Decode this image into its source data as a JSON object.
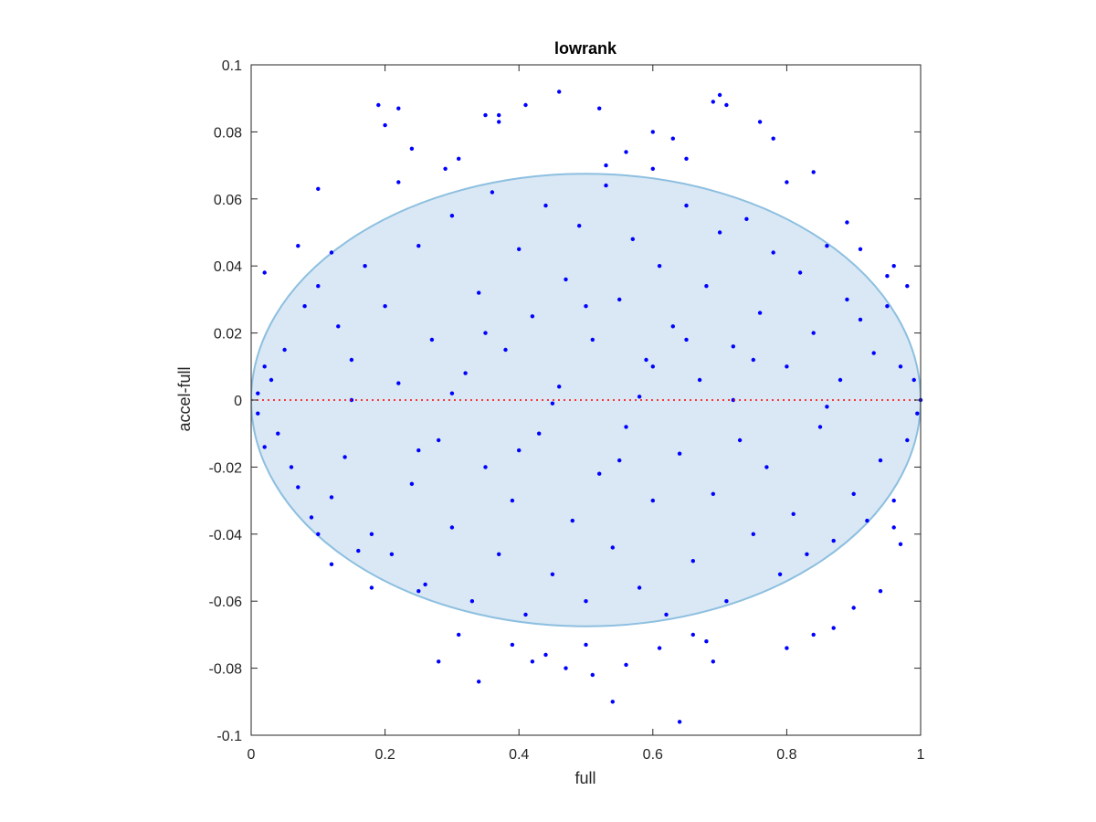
{
  "chart_data": {
    "type": "scatter",
    "title": "lowrank",
    "xlabel": "full",
    "ylabel": "accel-full",
    "xlim": [
      0,
      1
    ],
    "ylim": [
      -0.1,
      0.1
    ],
    "xticks": [
      "0",
      "0.2",
      "0.4",
      "0.6",
      "0.8",
      "1"
    ],
    "yticks": [
      "-0.1",
      "-0.08",
      "-0.06",
      "-0.04",
      "-0.02",
      "0",
      "0.02",
      "0.04",
      "0.06",
      "0.08",
      "0.1"
    ],
    "grid": false,
    "point_color": "#0000ff",
    "reference_line": {
      "y": 0,
      "color": "#ff0000",
      "style": "dotted"
    },
    "ellipse": {
      "cx": 0.5,
      "cy": 0.0,
      "rx": 0.5,
      "ry": 0.0675,
      "fill": "#d9e8f4",
      "stroke": "#8dbfe0"
    },
    "series": [
      {
        "values": [
          [
            0.19,
            0.088
          ],
          [
            0.2,
            0.082
          ],
          [
            0.22,
            0.087
          ],
          [
            0.24,
            0.075
          ],
          [
            0.41,
            0.088
          ],
          [
            0.46,
            0.092
          ],
          [
            0.52,
            0.087
          ],
          [
            0.35,
            0.085
          ],
          [
            0.37,
            0.085
          ],
          [
            0.37,
            0.083
          ],
          [
            0.6,
            0.08
          ],
          [
            0.63,
            0.078
          ],
          [
            0.69,
            0.089
          ],
          [
            0.7,
            0.091
          ],
          [
            0.71,
            0.088
          ],
          [
            0.76,
            0.083
          ],
          [
            0.65,
            0.072
          ],
          [
            0.78,
            0.078
          ],
          [
            0.8,
            0.065
          ],
          [
            0.84,
            0.068
          ],
          [
            0.1,
            0.063
          ],
          [
            0.22,
            0.065
          ],
          [
            0.12,
            0.044
          ],
          [
            0.07,
            0.046
          ],
          [
            0.02,
            0.038
          ],
          [
            0.96,
            0.04
          ],
          [
            0.95,
            0.037
          ],
          [
            0.98,
            0.034
          ],
          [
            0.91,
            0.045
          ],
          [
            0.89,
            0.053
          ],
          [
            0.29,
            0.069
          ],
          [
            0.31,
            0.072
          ],
          [
            0.53,
            0.07
          ],
          [
            0.56,
            0.074
          ],
          [
            0.6,
            0.069
          ],
          [
            0.02,
            0.01
          ],
          [
            0.01,
            0.002
          ],
          [
            0.01,
            -0.004
          ],
          [
            0.03,
            0.006
          ],
          [
            0.04,
            -0.01
          ],
          [
            0.02,
            -0.014
          ],
          [
            0.05,
            0.015
          ],
          [
            0.06,
            -0.02
          ],
          [
            0.08,
            0.028
          ],
          [
            0.07,
            -0.026
          ],
          [
            0.1,
            0.034
          ],
          [
            0.09,
            -0.035
          ],
          [
            0.13,
            0.022
          ],
          [
            0.12,
            -0.029
          ],
          [
            0.15,
            0.012
          ],
          [
            0.14,
            -0.017
          ],
          [
            0.17,
            0.04
          ],
          [
            0.18,
            -0.04
          ],
          [
            0.2,
            0.028
          ],
          [
            0.21,
            -0.046
          ],
          [
            0.22,
            0.005
          ],
          [
            0.24,
            -0.025
          ],
          [
            0.25,
            0.046
          ],
          [
            0.26,
            -0.055
          ],
          [
            0.27,
            0.018
          ],
          [
            0.28,
            -0.012
          ],
          [
            0.3,
            0.055
          ],
          [
            0.3,
            -0.038
          ],
          [
            0.32,
            0.008
          ],
          [
            0.33,
            -0.06
          ],
          [
            0.34,
            0.032
          ],
          [
            0.35,
            -0.02
          ],
          [
            0.36,
            0.062
          ],
          [
            0.37,
            -0.046
          ],
          [
            0.38,
            0.015
          ],
          [
            0.39,
            -0.03
          ],
          [
            0.4,
            0.045
          ],
          [
            0.41,
            -0.064
          ],
          [
            0.42,
            0.025
          ],
          [
            0.43,
            -0.01
          ],
          [
            0.44,
            0.058
          ],
          [
            0.45,
            -0.052
          ],
          [
            0.46,
            0.004
          ],
          [
            0.47,
            0.036
          ],
          [
            0.48,
            -0.036
          ],
          [
            0.49,
            0.052
          ],
          [
            0.5,
            -0.06
          ],
          [
            0.51,
            0.018
          ],
          [
            0.52,
            -0.022
          ],
          [
            0.53,
            0.064
          ],
          [
            0.54,
            -0.044
          ],
          [
            0.55,
            0.03
          ],
          [
            0.56,
            -0.008
          ],
          [
            0.57,
            0.048
          ],
          [
            0.58,
            -0.056
          ],
          [
            0.59,
            0.012
          ],
          [
            0.6,
            -0.03
          ],
          [
            0.61,
            0.04
          ],
          [
            0.62,
            -0.064
          ],
          [
            0.63,
            0.022
          ],
          [
            0.64,
            -0.016
          ],
          [
            0.65,
            0.058
          ],
          [
            0.66,
            -0.048
          ],
          [
            0.67,
            0.006
          ],
          [
            0.68,
            0.034
          ],
          [
            0.69,
            -0.028
          ],
          [
            0.7,
            0.05
          ],
          [
            0.71,
            -0.06
          ],
          [
            0.72,
            0.016
          ],
          [
            0.73,
            -0.012
          ],
          [
            0.74,
            0.054
          ],
          [
            0.75,
            -0.04
          ],
          [
            0.76,
            0.026
          ],
          [
            0.77,
            -0.02
          ],
          [
            0.78,
            0.044
          ],
          [
            0.79,
            -0.052
          ],
          [
            0.8,
            0.01
          ],
          [
            0.81,
            -0.034
          ],
          [
            0.82,
            0.038
          ],
          [
            0.83,
            -0.046
          ],
          [
            0.84,
            0.02
          ],
          [
            0.85,
            -0.008
          ],
          [
            0.86,
            0.046
          ],
          [
            0.87,
            -0.042
          ],
          [
            0.88,
            0.006
          ],
          [
            0.89,
            0.03
          ],
          [
            0.9,
            -0.028
          ],
          [
            0.91,
            0.024
          ],
          [
            0.92,
            -0.036
          ],
          [
            0.93,
            0.014
          ],
          [
            0.94,
            -0.018
          ],
          [
            0.95,
            0.028
          ],
          [
            0.96,
            -0.03
          ],
          [
            0.97,
            0.01
          ],
          [
            0.98,
            -0.012
          ],
          [
            0.99,
            0.006
          ],
          [
            0.995,
            -0.004
          ],
          [
            1.0,
            0.0
          ],
          [
            0.28,
            -0.078
          ],
          [
            0.31,
            -0.07
          ],
          [
            0.34,
            -0.084
          ],
          [
            0.39,
            -0.073
          ],
          [
            0.42,
            -0.078
          ],
          [
            0.44,
            -0.076
          ],
          [
            0.47,
            -0.08
          ],
          [
            0.5,
            -0.073
          ],
          [
            0.51,
            -0.082
          ],
          [
            0.54,
            -0.09
          ],
          [
            0.56,
            -0.079
          ],
          [
            0.61,
            -0.074
          ],
          [
            0.64,
            -0.096
          ],
          [
            0.66,
            -0.07
          ],
          [
            0.68,
            -0.072
          ],
          [
            0.69,
            -0.078
          ],
          [
            0.8,
            -0.074
          ],
          [
            0.84,
            -0.07
          ],
          [
            0.87,
            -0.068
          ],
          [
            0.9,
            -0.062
          ],
          [
            0.94,
            -0.057
          ],
          [
            0.1,
            -0.04
          ],
          [
            0.12,
            -0.049
          ],
          [
            0.16,
            -0.045
          ],
          [
            0.18,
            -0.056
          ],
          [
            0.25,
            -0.057
          ],
          [
            0.96,
            -0.038
          ],
          [
            0.97,
            -0.043
          ],
          [
            0.15,
            0.0
          ],
          [
            0.3,
            0.002
          ],
          [
            0.45,
            -0.001
          ],
          [
            0.58,
            0.001
          ],
          [
            0.72,
            0.0
          ],
          [
            0.86,
            -0.002
          ],
          [
            0.35,
            0.02
          ],
          [
            0.55,
            -0.018
          ],
          [
            0.65,
            0.018
          ],
          [
            0.25,
            -0.015
          ],
          [
            0.75,
            0.012
          ],
          [
            0.4,
            -0.015
          ],
          [
            0.5,
            0.028
          ],
          [
            0.6,
            0.01
          ]
        ]
      }
    ]
  }
}
